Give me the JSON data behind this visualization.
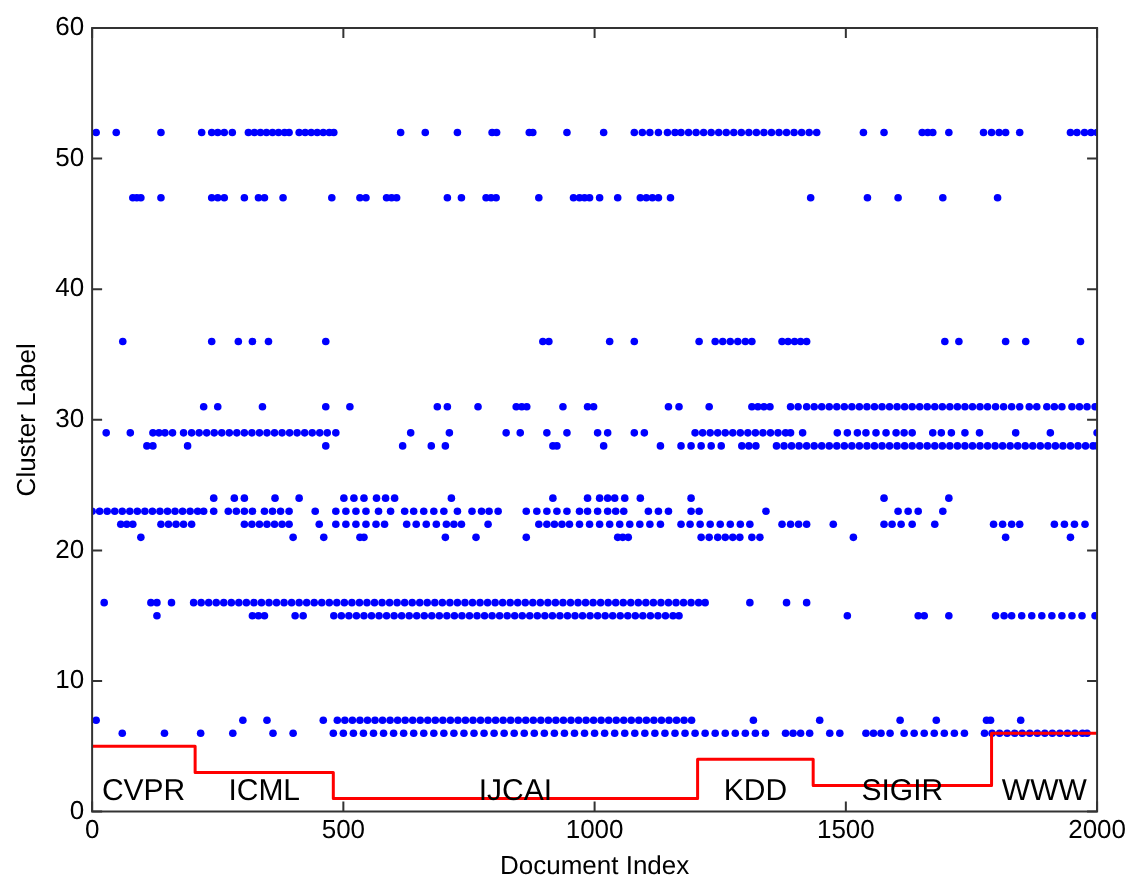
{
  "chart_data": {
    "type": "scatter",
    "xlabel": "Document Index",
    "ylabel": "Cluster Label",
    "xlim": [
      0,
      2000
    ],
    "xticks": [
      0,
      500,
      1000,
      1500,
      2000
    ],
    "ylim": [
      0,
      60
    ],
    "yticks": [
      0,
      10,
      20,
      30,
      40,
      50,
      60
    ],
    "grid": false,
    "legend": false,
    "marker": "circle",
    "series": [
      {
        "type": "scatter",
        "color": "#0000ff",
        "x": [
          8,
          48,
          137,
          218,
          238,
          250,
          263,
          279,
          311,
          323,
          335,
          347,
          359,
          371,
          383,
          392,
          412,
          424,
          436,
          448,
          460,
          472,
          481,
          614,
          663,
          727,
          796,
          805,
          870,
          877,
          945,
          1018,
          1079,
          1095,
          1110,
          1127,
          1145,
          1160,
          1172,
          1187,
          1202,
          1217,
          1232,
          1247,
          1262,
          1277,
          1292,
          1307,
          1322,
          1337,
          1352,
          1367,
          1382,
          1397,
          1412,
          1427,
          1442,
          1535,
          1576,
          1652,
          1663,
          1673,
          1705,
          1774,
          1790,
          1805,
          1818,
          1846,
          1947,
          1960,
          1975,
          1988,
          2000
        ],
        "values": [
          52,
          52,
          52,
          52,
          52,
          52,
          52,
          52,
          52,
          52,
          52,
          52,
          52,
          52,
          52,
          52,
          52,
          52,
          52,
          52,
          52,
          52,
          52,
          52,
          52,
          52,
          52,
          52,
          52,
          52,
          52,
          52,
          52,
          52,
          52,
          52,
          52,
          52,
          52,
          52,
          52,
          52,
          52,
          52,
          52,
          52,
          52,
          52,
          52,
          52,
          52,
          52,
          52,
          52,
          52,
          52,
          52,
          52,
          52,
          52,
          52,
          52,
          52,
          52,
          52,
          52,
          52,
          52,
          52,
          52,
          52,
          52,
          52
        ]
      },
      {
        "type": "scatter",
        "color": "#0000ff",
        "x": [
          81,
          89,
          97,
          137,
          238,
          250,
          263,
          303,
          331,
          343,
          380,
          477,
          533,
          545,
          586,
          596,
          606,
          707,
          735,
          784,
          794,
          804,
          889,
          958,
          970,
          980,
          990,
          1010,
          1046,
          1091,
          1103,
          1115,
          1127,
          1151,
          1430,
          1543,
          1604,
          1693,
          1802
        ],
        "values": [
          47,
          47,
          47,
          47,
          47,
          47,
          47,
          47,
          47,
          47,
          47,
          47,
          47,
          47,
          47,
          47,
          47,
          47,
          47,
          47,
          47,
          47,
          47,
          47,
          47,
          47,
          47,
          47,
          47,
          47,
          47,
          47,
          47,
          47,
          47,
          47,
          47,
          47,
          47
        ]
      },
      {
        "type": "scatter",
        "color": "#0000ff",
        "x": [
          61,
          238,
          291,
          319,
          351,
          465,
          897,
          909,
          1030,
          1079,
          1208,
          1240,
          1255,
          1270,
          1285,
          1300,
          1313,
          1373,
          1385,
          1398,
          1410,
          1422,
          1697,
          1725,
          1818,
          1858,
          1967
        ],
        "values": [
          36,
          36,
          36,
          36,
          36,
          36,
          36,
          36,
          36,
          36,
          36,
          36,
          36,
          36,
          36,
          36,
          36,
          36,
          36,
          36,
          36,
          36,
          36,
          36,
          36,
          36,
          36
        ]
      },
      {
        "type": "scatter",
        "color": "#0000ff",
        "x": [
          222,
          250,
          339,
          465,
          513,
          687,
          707,
          768,
          844,
          855,
          865,
          937,
          986,
          998,
          1147,
          1168,
          1228,
          1313,
          1325,
          1337,
          1349,
          1390,
          1405,
          1422,
          1437,
          1452,
          1467,
          1482,
          1497,
          1512,
          1527,
          1542,
          1557,
          1572,
          1587,
          1602,
          1617,
          1632,
          1647,
          1662,
          1677,
          1692,
          1707,
          1722,
          1737,
          1752,
          1767,
          1782,
          1798,
          1814,
          1830,
          1846,
          1865,
          1880,
          1900,
          1915,
          1930,
          1950,
          1965,
          1980,
          1996
        ],
        "values": [
          31,
          31,
          31,
          31,
          31,
          31,
          31,
          31,
          31,
          31,
          31,
          31,
          31,
          31,
          31,
          31,
          31,
          31,
          31,
          31,
          31,
          31,
          31,
          31,
          31,
          31,
          31,
          31,
          31,
          31,
          31,
          31,
          31,
          31,
          31,
          31,
          31,
          31,
          31,
          31,
          31,
          31,
          31,
          31,
          31,
          31,
          31,
          31,
          31,
          31,
          31,
          31,
          31,
          31,
          31,
          31,
          31,
          31,
          31,
          31,
          31
        ]
      },
      {
        "type": "scatter",
        "color": "#0000ff",
        "x": [
          28,
          76,
          121,
          133,
          145,
          160,
          182,
          198,
          213,
          228,
          243,
          258,
          273,
          288,
          303,
          318,
          333,
          348,
          363,
          378,
          393,
          408,
          423,
          438,
          453,
          468,
          485,
          634,
          711,
          824,
          852,
          905,
          945,
          1006,
          1026,
          1079,
          1099,
          1200,
          1215,
          1230,
          1245,
          1260,
          1275,
          1290,
          1305,
          1320,
          1335,
          1350,
          1365,
          1380,
          1390,
          1414,
          1483,
          1503,
          1523,
          1540,
          1560,
          1580,
          1600,
          1616,
          1632,
          1673,
          1690,
          1710,
          1737,
          1766,
          1838,
          1907,
          2000
        ],
        "values": [
          29,
          29,
          29,
          29,
          29,
          29,
          29,
          29,
          29,
          29,
          29,
          29,
          29,
          29,
          29,
          29,
          29,
          29,
          29,
          29,
          29,
          29,
          29,
          29,
          29,
          29,
          29,
          29,
          29,
          29,
          29,
          29,
          29,
          29,
          29,
          29,
          29,
          29,
          29,
          29,
          29,
          29,
          29,
          29,
          29,
          29,
          29,
          29,
          29,
          29,
          29,
          29,
          29,
          29,
          29,
          29,
          29,
          29,
          29,
          29,
          29,
          29,
          29,
          29,
          29,
          29,
          29,
          29,
          29
        ]
      },
      {
        "type": "scatter",
        "color": "#0000ff",
        "x": [
          109,
          121,
          190,
          465,
          618,
          675,
          703,
          917,
          925,
          1018,
          1131,
          1172,
          1192,
          1212,
          1232,
          1252,
          1293,
          1307,
          1321,
          1362,
          1377,
          1392,
          1407,
          1422,
          1437,
          1452,
          1467,
          1482,
          1497,
          1512,
          1527,
          1542,
          1557,
          1572,
          1587,
          1602,
          1617,
          1632,
          1647,
          1662,
          1677,
          1692,
          1707,
          1722,
          1737,
          1752,
          1767,
          1782,
          1797,
          1812,
          1827,
          1842,
          1857,
          1872,
          1887,
          1902,
          1917,
          1932,
          1947,
          1962,
          1977,
          1992,
          2000
        ],
        "values": [
          28,
          28,
          28,
          28,
          28,
          28,
          28,
          28,
          28,
          28,
          28,
          28,
          28,
          28,
          28,
          28,
          28,
          28,
          28,
          28,
          28,
          28,
          28,
          28,
          28,
          28,
          28,
          28,
          28,
          28,
          28,
          28,
          28,
          28,
          28,
          28,
          28,
          28,
          28,
          28,
          28,
          28,
          28,
          28,
          28,
          28,
          28,
          28,
          28,
          28,
          28,
          28,
          28,
          28,
          28,
          28,
          28,
          28,
          28,
          28,
          28,
          28,
          28
        ]
      },
      {
        "type": "scatter",
        "color": "#0000ff",
        "x": [
          242,
          283,
          303,
          364,
          412,
          501,
          521,
          541,
          566,
          584,
          602,
          715,
          917,
          986,
          1010,
          1026,
          1040,
          1060,
          1091,
          1192,
          1576,
          1705
        ],
        "values": [
          24,
          24,
          24,
          24,
          24,
          24,
          24,
          24,
          24,
          24,
          24,
          24,
          24,
          24,
          24,
          24,
          24,
          24,
          24,
          24,
          24,
          24
        ]
      },
      {
        "type": "scatter",
        "color": "#0000ff",
        "x": [
          0,
          15,
          30,
          45,
          60,
          75,
          90,
          105,
          120,
          135,
          150,
          165,
          180,
          195,
          210,
          222,
          242,
          271,
          287,
          303,
          319,
          343,
          359,
          375,
          392,
          444,
          485,
          505,
          525,
          545,
          570,
          594,
          622,
          640,
          660,
          680,
          700,
          727,
          756,
          775,
          790,
          808,
          864,
          885,
          905,
          925,
          945,
          970,
          986,
          1006,
          1026,
          1042,
          1058,
          1107,
          1127,
          1147,
          1192,
          1208,
          1341,
          1604,
          1624,
          1644,
          1693
        ],
        "values": [
          23,
          23,
          23,
          23,
          23,
          23,
          23,
          23,
          23,
          23,
          23,
          23,
          23,
          23,
          23,
          23,
          23,
          23,
          23,
          23,
          23,
          23,
          23,
          23,
          23,
          23,
          23,
          23,
          23,
          23,
          23,
          23,
          23,
          23,
          23,
          23,
          23,
          23,
          23,
          23,
          23,
          23,
          23,
          23,
          23,
          23,
          23,
          23,
          23,
          23,
          23,
          23,
          23,
          23,
          23,
          23,
          23,
          23,
          23,
          23,
          23,
          23,
          23
        ]
      },
      {
        "type": "scatter",
        "color": "#0000ff",
        "x": [
          57,
          69,
          81,
          137,
          152,
          167,
          182,
          198,
          303,
          318,
          333,
          348,
          363,
          378,
          392,
          452,
          485,
          505,
          525,
          545,
          565,
          582,
          626,
          645,
          665,
          685,
          705,
          720,
          735,
          788,
          889,
          905,
          920,
          935,
          950,
          970,
          990,
          1010,
          1030,
          1050,
          1070,
          1090,
          1110,
          1131,
          1172,
          1190,
          1210,
          1230,
          1250,
          1270,
          1290,
          1309,
          1373,
          1390,
          1406,
          1422,
          1475,
          1576,
          1592,
          1610,
          1632,
          1677,
          1794,
          1812,
          1830,
          1846,
          1915,
          1935,
          1955,
          1976
        ],
        "values": [
          22,
          22,
          22,
          22,
          22,
          22,
          22,
          22,
          22,
          22,
          22,
          22,
          22,
          22,
          22,
          22,
          22,
          22,
          22,
          22,
          22,
          22,
          22,
          22,
          22,
          22,
          22,
          22,
          22,
          22,
          22,
          22,
          22,
          22,
          22,
          22,
          22,
          22,
          22,
          22,
          22,
          22,
          22,
          22,
          22,
          22,
          22,
          22,
          22,
          22,
          22,
          22,
          22,
          22,
          22,
          22,
          22,
          22,
          22,
          22,
          22,
          22,
          22,
          22,
          22,
          22,
          22,
          22,
          22,
          22
        ]
      },
      {
        "type": "scatter",
        "color": "#0000ff",
        "x": [
          97,
          400,
          461,
          533,
          541,
          703,
          764,
          864,
          1046,
          1056,
          1067,
          1212,
          1228,
          1245,
          1260,
          1275,
          1289,
          1313,
          1329,
          1515,
          1818,
          1947
        ],
        "values": [
          21,
          21,
          21,
          21,
          21,
          21,
          21,
          21,
          21,
          21,
          21,
          21,
          21,
          21,
          21,
          21,
          21,
          21,
          21,
          21,
          21,
          21
        ]
      },
      {
        "type": "scatter",
        "color": "#0000ff",
        "x": [
          24,
          117,
          129,
          158,
          202,
          217,
          232,
          247,
          262,
          277,
          292,
          307,
          322,
          337,
          352,
          367,
          382,
          397,
          412,
          427,
          442,
          457,
          472,
          487,
          502,
          517,
          532,
          547,
          562,
          577,
          592,
          607,
          622,
          637,
          652,
          667,
          682,
          697,
          712,
          727,
          742,
          757,
          772,
          787,
          802,
          817,
          832,
          847,
          862,
          877,
          892,
          907,
          922,
          937,
          952,
          967,
          982,
          997,
          1012,
          1027,
          1042,
          1057,
          1072,
          1087,
          1102,
          1117,
          1132,
          1147,
          1162,
          1177,
          1192,
          1207,
          1220,
          1309,
          1382,
          1422
        ],
        "values": [
          16,
          16,
          16,
          16,
          16,
          16,
          16,
          16,
          16,
          16,
          16,
          16,
          16,
          16,
          16,
          16,
          16,
          16,
          16,
          16,
          16,
          16,
          16,
          16,
          16,
          16,
          16,
          16,
          16,
          16,
          16,
          16,
          16,
          16,
          16,
          16,
          16,
          16,
          16,
          16,
          16,
          16,
          16,
          16,
          16,
          16,
          16,
          16,
          16,
          16,
          16,
          16,
          16,
          16,
          16,
          16,
          16,
          16,
          16,
          16,
          16,
          16,
          16,
          16,
          16,
          16,
          16,
          16,
          16,
          16,
          16,
          16,
          16,
          16,
          16,
          16
        ]
      },
      {
        "type": "scatter",
        "color": "#0000ff",
        "x": [
          129,
          319,
          331,
          343,
          404,
          420,
          481,
          496,
          511,
          526,
          541,
          556,
          571,
          586,
          601,
          616,
          631,
          646,
          661,
          676,
          691,
          706,
          721,
          736,
          751,
          766,
          781,
          796,
          811,
          826,
          841,
          856,
          871,
          886,
          901,
          916,
          931,
          946,
          961,
          976,
          991,
          1006,
          1021,
          1036,
          1051,
          1066,
          1081,
          1096,
          1111,
          1126,
          1141,
          1156,
          1168,
          1503,
          1644,
          1656,
          1705,
          1798,
          1815,
          1830,
          1850,
          1870,
          1890,
          1910,
          1930,
          1950,
          1970,
          1996
        ],
        "values": [
          15,
          15,
          15,
          15,
          15,
          15,
          15,
          15,
          15,
          15,
          15,
          15,
          15,
          15,
          15,
          15,
          15,
          15,
          15,
          15,
          15,
          15,
          15,
          15,
          15,
          15,
          15,
          15,
          15,
          15,
          15,
          15,
          15,
          15,
          15,
          15,
          15,
          15,
          15,
          15,
          15,
          15,
          15,
          15,
          15,
          15,
          15,
          15,
          15,
          15,
          15,
          15,
          15,
          15,
          15,
          15,
          15,
          15,
          15,
          15,
          15,
          15,
          15,
          15,
          15,
          15,
          15,
          15
        ]
      },
      {
        "type": "scatter",
        "color": "#0000ff",
        "x": [
          8,
          300,
          348,
          460,
          488,
          503,
          518,
          533,
          548,
          563,
          578,
          593,
          608,
          623,
          638,
          653,
          668,
          683,
          698,
          713,
          728,
          743,
          758,
          773,
          788,
          803,
          818,
          833,
          848,
          863,
          878,
          893,
          908,
          923,
          938,
          953,
          968,
          983,
          998,
          1013,
          1028,
          1043,
          1058,
          1073,
          1088,
          1103,
          1118,
          1133,
          1148,
          1163,
          1178,
          1193,
          1316,
          1448,
          1608,
          1680,
          1780,
          1788,
          1848
        ],
        "values": [
          7,
          7,
          7,
          7,
          7,
          7,
          7,
          7,
          7,
          7,
          7,
          7,
          7,
          7,
          7,
          7,
          7,
          7,
          7,
          7,
          7,
          7,
          7,
          7,
          7,
          7,
          7,
          7,
          7,
          7,
          7,
          7,
          7,
          7,
          7,
          7,
          7,
          7,
          7,
          7,
          7,
          7,
          7,
          7,
          7,
          7,
          7,
          7,
          7,
          7,
          7,
          7,
          7,
          7,
          7,
          7,
          7,
          7,
          7
        ]
      },
      {
        "type": "scatter",
        "color": "#0000ff",
        "x": [
          60,
          144,
          216,
          280,
          360,
          400,
          480,
          500,
          520,
          540,
          560,
          580,
          600,
          620,
          640,
          660,
          680,
          700,
          720,
          740,
          760,
          780,
          800,
          820,
          840,
          860,
          880,
          900,
          920,
          940,
          960,
          980,
          1000,
          1020,
          1040,
          1060,
          1080,
          1100,
          1120,
          1140,
          1160,
          1180,
          1200,
          1220,
          1240,
          1260,
          1280,
          1300,
          1320,
          1340,
          1380,
          1395,
          1410,
          1428,
          1468,
          1488,
          1540,
          1555,
          1570,
          1588,
          1616,
          1636,
          1656,
          1676,
          1696,
          1716,
          1736,
          1776,
          1791,
          1806,
          1821,
          1836,
          1851,
          1866,
          1881,
          1896,
          1911,
          1926,
          1941,
          1956,
          1971,
          1980
        ],
        "values": [
          6,
          6,
          6,
          6,
          6,
          6,
          6,
          6,
          6,
          6,
          6,
          6,
          6,
          6,
          6,
          6,
          6,
          6,
          6,
          6,
          6,
          6,
          6,
          6,
          6,
          6,
          6,
          6,
          6,
          6,
          6,
          6,
          6,
          6,
          6,
          6,
          6,
          6,
          6,
          6,
          6,
          6,
          6,
          6,
          6,
          6,
          6,
          6,
          6,
          6,
          6,
          6,
          6,
          6,
          6,
          6,
          6,
          6,
          6,
          6,
          6,
          6,
          6,
          6,
          6,
          6,
          6,
          6,
          6,
          6,
          6,
          6,
          6,
          6,
          6,
          6,
          6,
          6,
          6,
          6,
          6,
          6
        ]
      },
      {
        "type": "step",
        "color": "#ff0000",
        "marker": "none",
        "x": [
          0,
          205,
          480,
          1205,
          1435,
          1790,
          2000
        ],
        "values": [
          5,
          3,
          1,
          4,
          2,
          6,
          6
        ]
      }
    ],
    "annotations": [
      "CVPR",
      "ICML",
      "IJCAI",
      "KDD",
      "SIGIR",
      "WWW"
    ]
  }
}
